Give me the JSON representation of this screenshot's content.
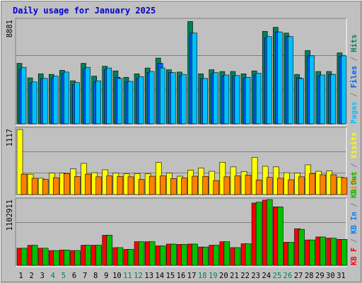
{
  "chart_data": {
    "type": "bar",
    "title": "Daily usage for January 2025",
    "categories": [
      "1",
      "2",
      "3",
      "4",
      "5",
      "6",
      "7",
      "8",
      "9",
      "10",
      "11",
      "12",
      "13",
      "14",
      "15",
      "16",
      "17",
      "18",
      "19",
      "20",
      "21",
      "22",
      "23",
      "24",
      "25",
      "26",
      "27",
      "28",
      "29",
      "30",
      "31"
    ],
    "weekend_days": [
      "4",
      "5",
      "11",
      "12",
      "18",
      "19",
      "25",
      "26"
    ],
    "panels": [
      {
        "name": "hits-panel",
        "ymax_label": "8881",
        "ymax": 8881,
        "grid_fractions": [
          0.333,
          0.667
        ],
        "side_labels": [
          {
            "text": "Pages",
            "color": "#00c0ff"
          },
          {
            "text": " / ",
            "color": "#808080"
          },
          {
            "text": "Files",
            "color": "#0060ff"
          },
          {
            "text": " / ",
            "color": "#808080"
          },
          {
            "text": "Hits",
            "color": "#00805c"
          }
        ],
        "series": [
          {
            "key": "hits",
            "color": "#00805c",
            "values": [
              5200,
              3950,
              4300,
              4250,
              4600,
              3700,
              5200,
              4100,
              4950,
              4550,
              4000,
              4300,
              4800,
              5650,
              4650,
              4450,
              8800,
              4300,
              4650,
              4500,
              4500,
              4300,
              4550,
              7950,
              8300,
              7800,
              4250,
              6300,
              4500,
              4500,
              6100
            ]
          },
          {
            "key": "files",
            "color": "#0060ff",
            "values": [
              4700,
              3500,
              3900,
              3950,
              4300,
              3350,
              4750,
              3600,
              4650,
              4000,
              3600,
              3900,
              4400,
              5200,
              4400,
              4100,
              7800,
              3900,
              4300,
              4100,
              4100,
              3950,
              4200,
              7400,
              7900,
              7500,
              3950,
              5850,
              4100,
              4250,
              5800
            ]
          },
          {
            "key": "pages",
            "color": "#00c0ff",
            "values": [
              4850,
              3600,
              3900,
              4100,
              4450,
              3550,
              4850,
              3700,
              4800,
              3900,
              3650,
              4050,
              4500,
              4800,
              4400,
              4250,
              7800,
              3900,
              4400,
              4200,
              4150,
              4000,
              4350,
              7500,
              7900,
              7500,
              3900,
              5850,
              4200,
              4250,
              5850
            ]
          }
        ]
      },
      {
        "name": "visits-panel",
        "ymax_label": "1117",
        "ymax": 1117,
        "grid_fractions": [
          0.333,
          0.667
        ],
        "side_labels": [
          {
            "text": "Sites",
            "color": "#ff8000"
          },
          {
            "text": " / ",
            "color": "#808080"
          },
          {
            "text": "Visits",
            "color": "#ffff00"
          }
        ],
        "series": [
          {
            "key": "visits",
            "color": "#ffff00",
            "values": [
              1117,
              350,
              280,
              370,
              370,
              440,
              535,
              375,
              425,
              370,
              355,
              360,
              355,
              550,
              370,
              315,
              420,
              455,
              400,
              555,
              475,
              395,
              640,
              485,
              475,
              375,
              370,
              510,
              400,
              405,
              300
            ]
          },
          {
            "key": "sites",
            "color": "#ff8000",
            "values": [
              350,
              280,
              260,
              290,
              360,
              310,
              350,
              305,
              320,
              310,
              305,
              260,
              315,
              320,
              275,
              285,
              315,
              310,
              240,
              305,
              320,
              335,
              250,
              295,
              280,
              255,
              305,
              360,
              340,
              340,
              290
            ]
          }
        ]
      },
      {
        "name": "kbytes-panel",
        "ymax_label": "1102911",
        "ymax": 1102911,
        "grid_fractions": [
          0.667
        ],
        "side_labels": [
          {
            "text": "KB F",
            "color": "#ff0000"
          },
          {
            "text": " / ",
            "color": "#808080"
          },
          {
            "text": "KB In",
            "color": "#0080ff"
          },
          {
            "text": " / ",
            "color": "#808080"
          },
          {
            "text": "KB Out",
            "color": "#00c000"
          }
        ],
        "series": [
          {
            "key": "kbf",
            "color": "#ff0000",
            "values": [
              290000,
              340000,
              290000,
              250000,
              260000,
              250000,
              340000,
              340000,
              510000,
              300000,
              270000,
              400000,
              400000,
              330000,
              360000,
              355000,
              360000,
              310000,
              340000,
              400000,
              300000,
              365000,
              1055000,
              1105000,
              990000,
              390000,
              620000,
              430000,
              480000,
              460000,
              440000
            ]
          },
          {
            "key": "kbout",
            "color": "#00c000",
            "values": [
              290000,
              340000,
              290000,
              250000,
              260000,
              250000,
              340000,
              340000,
              510000,
              300000,
              270000,
              400000,
              400000,
              330000,
              360000,
              355000,
              360000,
              310000,
              340000,
              400000,
              300000,
              365000,
              1070000,
              1115000,
              990000,
              390000,
              610000,
              430000,
              480000,
              460000,
              440000
            ]
          }
        ]
      }
    ]
  }
}
